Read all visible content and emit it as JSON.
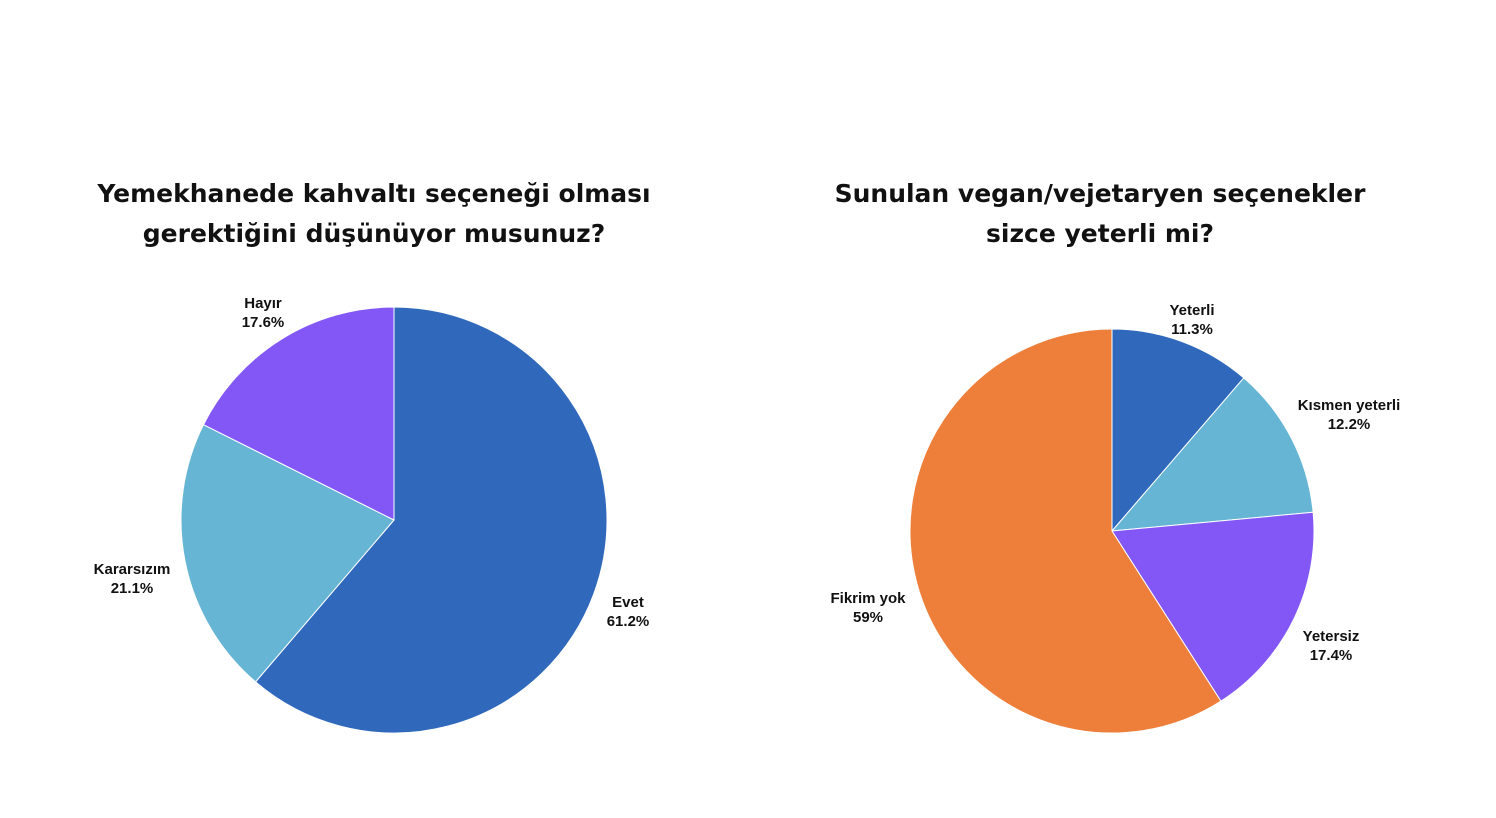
{
  "chart_data": [
    {
      "type": "pie",
      "title_lines": [
        "Yemekhanede kahvaltı seçeneği olması",
        "gerektiğini düşünüyor musunuz?"
      ],
      "slices": [
        {
          "label": "Evet",
          "value": 61.2,
          "value_text": "61.2%",
          "color": "#3069BC"
        },
        {
          "label": "Kararsızım",
          "value": 21.1,
          "value_text": "21.1%",
          "color": "#66B5D4"
        },
        {
          "label": "Hayır",
          "value": 17.6,
          "value_text": "17.6%",
          "color": "#8357F6"
        }
      ],
      "start_angle_deg": 0,
      "direction": "clockwise",
      "legend": "none (labels outside slices)"
    },
    {
      "type": "pie",
      "title_lines": [
        "Sunulan vegan/vejetaryen seçenekler",
        "sizce yeterli mi?"
      ],
      "slices": [
        {
          "label": "Yeterli",
          "value": 11.3,
          "value_text": "11.3%",
          "color": "#3069BC"
        },
        {
          "label": "Kısmen yeterli",
          "value": 12.2,
          "value_text": "12.2%",
          "color": "#66B5D4"
        },
        {
          "label": "Yetersiz",
          "value": 17.4,
          "value_text": "17.4%",
          "color": "#8357F6"
        },
        {
          "label": "Fikrim yok",
          "value": 59,
          "value_text": "59%",
          "color": "#EE7F3B"
        }
      ],
      "start_angle_deg": 0,
      "direction": "clockwise",
      "legend": "none (labels outside slices)"
    }
  ]
}
